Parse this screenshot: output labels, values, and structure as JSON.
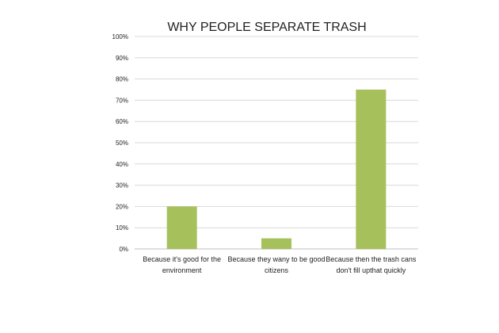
{
  "chart_data": {
    "type": "bar",
    "title": "WHY PEOPLE SEPARATE TRASH",
    "xlabel": "",
    "ylabel": "",
    "categories": [
      [
        "Because it's good for the",
        "environment"
      ],
      [
        "Because they wany to be good",
        "citizens"
      ],
      [
        "Because then the trash cans",
        "don't fill upthat quickly"
      ]
    ],
    "values": [
      20,
      5,
      75
    ],
    "ylim": [
      0,
      100
    ],
    "yticks": [
      "0%",
      "10%",
      "20%",
      "30%",
      "40%",
      "50%",
      "60%",
      "70%",
      "80%",
      "90%",
      "100%"
    ],
    "grid": true,
    "legend": "none",
    "bar_color": "#a6c15b"
  }
}
